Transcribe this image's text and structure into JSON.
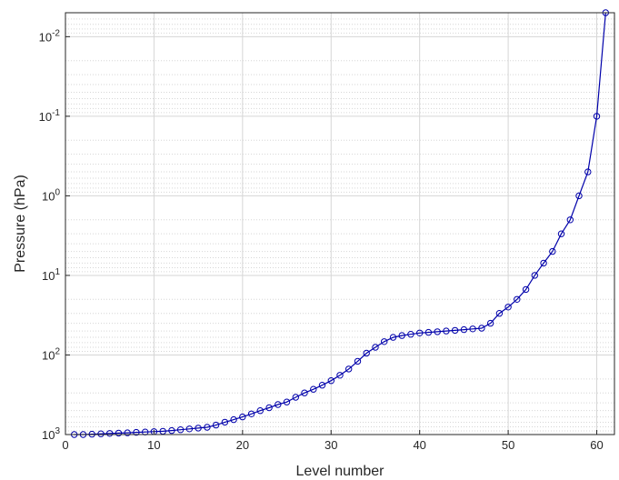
{
  "chart_data": {
    "type": "line",
    "title": "",
    "xlabel": "Level number",
    "ylabel": "Pressure (hPa)",
    "xlim": [
      0,
      62
    ],
    "ylim": [
      0.005,
      1000
    ],
    "y_scale": "log",
    "y_reversed": true,
    "grid": true,
    "minor_grid": true,
    "x_ticks": [
      0,
      10,
      20,
      30,
      40,
      50,
      60
    ],
    "y_ticks": [
      {
        "value": 0.01,
        "base": "10",
        "exp": "-2"
      },
      {
        "value": 0.1,
        "base": "10",
        "exp": "-1"
      },
      {
        "value": 1,
        "base": "10",
        "exp": "0"
      },
      {
        "value": 10,
        "base": "10",
        "exp": "1"
      },
      {
        "value": 100,
        "base": "10",
        "exp": "2"
      },
      {
        "value": 1000,
        "base": "10",
        "exp": "3"
      }
    ],
    "colors": {
      "line": "#0000aa",
      "marker": "#0000aa",
      "grid": "#d6d6d6",
      "axis": "#262626"
    },
    "marker": "circle",
    "x": [
      1,
      2,
      3,
      4,
      5,
      6,
      7,
      8,
      9,
      10,
      11,
      12,
      13,
      14,
      15,
      16,
      17,
      18,
      19,
      20,
      21,
      22,
      23,
      24,
      25,
      26,
      27,
      28,
      29,
      30,
      31,
      32,
      33,
      34,
      35,
      36,
      37,
      38,
      39,
      40,
      41,
      42,
      43,
      44,
      45,
      46,
      47,
      48,
      49,
      50,
      51,
      52,
      53,
      54,
      55,
      56,
      57,
      58,
      59,
      60,
      61
    ],
    "y": [
      1000,
      1000,
      990,
      980,
      970,
      960,
      950,
      940,
      930,
      920,
      910,
      890,
      870,
      850,
      830,
      810,
      760,
      700,
      650,
      600,
      550,
      500,
      460,
      420,
      390,
      340,
      300,
      270,
      240,
      210,
      180,
      150,
      120,
      95,
      80,
      68,
      60,
      57,
      55,
      53,
      52,
      51,
      50,
      49,
      48,
      47,
      46,
      40,
      30,
      25,
      20,
      15,
      10,
      7,
      5,
      3,
      2,
      1,
      0.5,
      0.1,
      0.005
    ]
  }
}
